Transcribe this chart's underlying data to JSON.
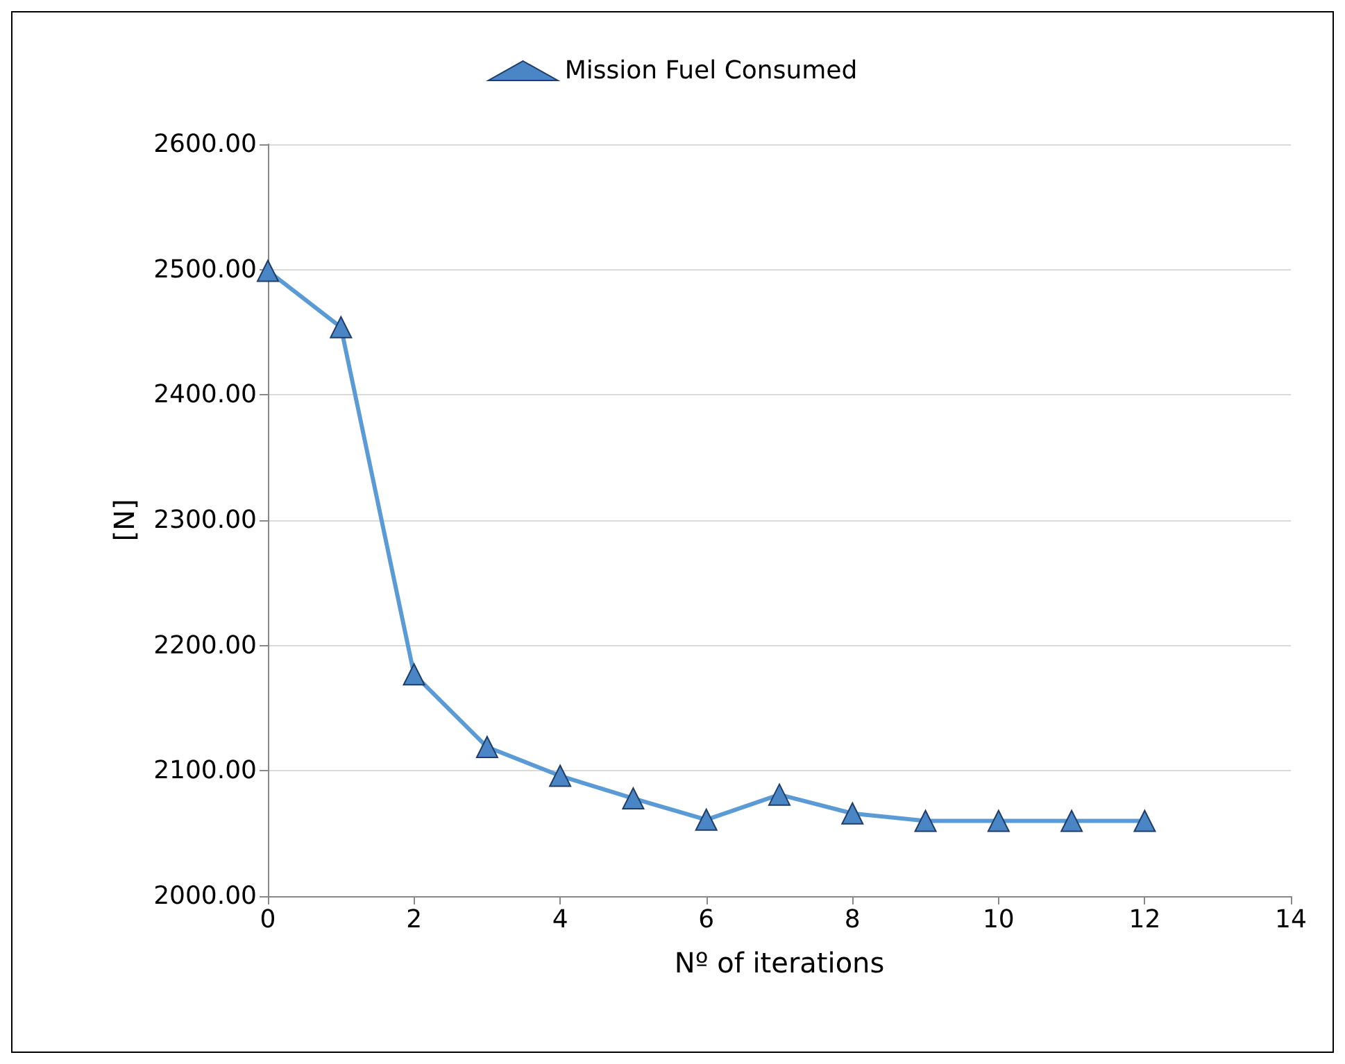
{
  "chart_data": {
    "type": "line",
    "xlabel": "Nº of iterations",
    "ylabel": "[N]",
    "x": [
      0,
      1,
      2,
      3,
      4,
      5,
      6,
      7,
      8,
      9,
      10,
      11,
      12
    ],
    "series": [
      {
        "name": "Mission Fuel Consumed",
        "color": "#5b9bd5",
        "values": [
          2499,
          2454,
          2177,
          2119,
          2096,
          2078,
          2061,
          2081,
          2066,
          2060,
          2060,
          2060,
          2060
        ]
      }
    ],
    "xlim": [
      0,
      14
    ],
    "xticks": [
      0,
      2,
      4,
      6,
      8,
      10,
      12,
      14
    ],
    "ylim": [
      2000,
      2600
    ],
    "yticks": [
      {
        "value": 2000,
        "label": "2000.00"
      },
      {
        "value": 2100,
        "label": "2100.00"
      },
      {
        "value": 2200,
        "label": "2200.00"
      },
      {
        "value": 2300,
        "label": "2300.00"
      },
      {
        "value": 2400,
        "label": "2400.00"
      },
      {
        "value": 2500,
        "label": "2500.00"
      },
      {
        "value": 2600,
        "label": "2600.00"
      }
    ],
    "grid": "y",
    "legend": "top",
    "marker": "triangle",
    "line_style": "solid"
  }
}
